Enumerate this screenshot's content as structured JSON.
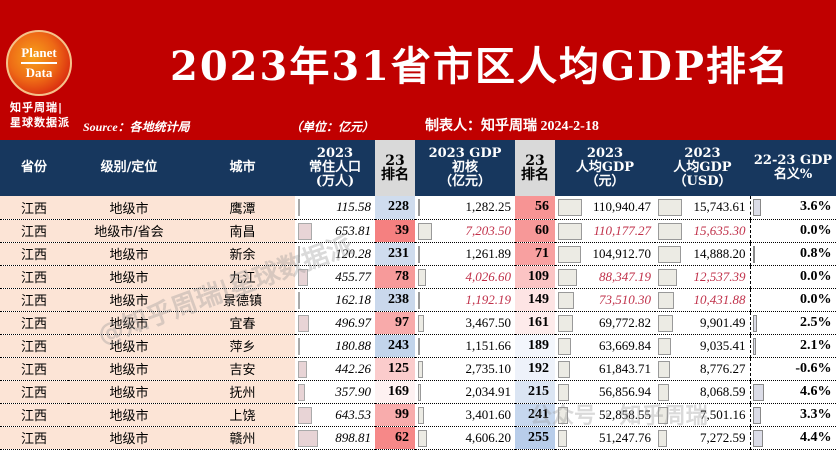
{
  "header": {
    "logo_line1": "Planet",
    "logo_line2": "Data",
    "brand_line1": "知乎周瑞|",
    "brand_line2": "星球数据派",
    "title": "2023年31省市区人均GDP排名",
    "source": "Source：各地统计局",
    "unit": "（单位：亿元）",
    "maker": "制表人：知乎周瑞 2024-2-18",
    "banner_color": "#c00000"
  },
  "columns": [
    {
      "label": "省份"
    },
    {
      "label": "级别/定位"
    },
    {
      "label": "城市"
    },
    {
      "label": "2023\n常住人口\n(万人)"
    },
    {
      "label": "23\n排名"
    },
    {
      "label": "2023 GDP\n初核\n（亿元）"
    },
    {
      "label": "23\n排名"
    },
    {
      "label": "2023\n人均GDP\n（元）"
    },
    {
      "label": "2023\n人均GDP\n（USD）"
    },
    {
      "label": "22-23 GDP\n名义%"
    }
  ],
  "rows": [
    {
      "province": "江西",
      "level": "地级市",
      "city": "鹰潭",
      "population": "115.58",
      "pop_rank": "228",
      "gdp": "1,282.25",
      "gdp_rank": "56",
      "gdp_pc_cny": "110,940.47",
      "gdp_pc_usd": "15,743.61",
      "growth": "3.6%",
      "italic_red": false,
      "pop_rank_color": "#cfdcee",
      "gdp_rank_color": "#f79494",
      "pop_bar": 2,
      "gdp_bar": 2,
      "pc_bar": 24,
      "usd_bar": 24,
      "g_bar": 8
    },
    {
      "province": "江西",
      "level": "地级市/省会",
      "city": "南昌",
      "population": "653.81",
      "pop_rank": "39",
      "gdp": "7,203.50",
      "gdp_rank": "60",
      "gdp_pc_cny": "110,177.27",
      "gdp_pc_usd": "15,635.30",
      "growth": "0.0%",
      "italic_red": true,
      "pop_rank_color": "#f58080",
      "gdp_rank_color": "#f79898",
      "pop_bar": 14,
      "gdp_bar": 14,
      "pc_bar": 24,
      "usd_bar": 24,
      "g_bar": 0
    },
    {
      "province": "江西",
      "level": "地级市",
      "city": "新余",
      "population": "120.28",
      "pop_rank": "231",
      "gdp": "1,261.89",
      "gdp_rank": "71",
      "gdp_pc_cny": "104,912.70",
      "gdp_pc_usd": "14,888.20",
      "growth": "0.8%",
      "italic_red": false,
      "pop_rank_color": "#cfdcee",
      "gdp_rank_color": "#f8a0a0",
      "pop_bar": 2,
      "gdp_bar": 2,
      "pc_bar": 23,
      "usd_bar": 23,
      "g_bar": 2
    },
    {
      "province": "江西",
      "level": "地级市",
      "city": "九江",
      "population": "455.77",
      "pop_rank": "78",
      "gdp": "4,026.60",
      "gdp_rank": "109",
      "gdp_pc_cny": "88,347.19",
      "gdp_pc_usd": "12,537.39",
      "growth": "0.0%",
      "italic_red": true,
      "pop_rank_color": "#f79a9a",
      "gdp_rank_color": "#fbc4c4",
      "pop_bar": 10,
      "gdp_bar": 8,
      "pc_bar": 19,
      "usd_bar": 19,
      "g_bar": 0
    },
    {
      "province": "江西",
      "level": "地级市",
      "city": "景德镇",
      "population": "162.18",
      "pop_rank": "238",
      "gdp": "1,192.19",
      "gdp_rank": "149",
      "gdp_pc_cny": "73,510.30",
      "gdp_pc_usd": "10,431.88",
      "growth": "0.0%",
      "italic_red": true,
      "pop_rank_color": "#cad8ec",
      "gdp_rank_color": "#fde4e4",
      "pop_bar": 2,
      "gdp_bar": 1,
      "pc_bar": 16,
      "usd_bar": 16,
      "g_bar": 0
    },
    {
      "province": "江西",
      "level": "地级市",
      "city": "宜春",
      "population": "496.97",
      "pop_rank": "97",
      "gdp": "3,467.50",
      "gdp_rank": "161",
      "gdp_pc_cny": "69,772.82",
      "gdp_pc_usd": "9,901.49",
      "growth": "2.5%",
      "italic_red": false,
      "pop_rank_color": "#f8aaaa",
      "gdp_rank_color": "#fdebeb",
      "pop_bar": 11,
      "gdp_bar": 6,
      "pc_bar": 15,
      "usd_bar": 15,
      "g_bar": 4
    },
    {
      "province": "江西",
      "level": "地级市",
      "city": "萍乡",
      "population": "180.88",
      "pop_rank": "243",
      "gdp": "1,151.66",
      "gdp_rank": "189",
      "gdp_pc_cny": "63,669.84",
      "gdp_pc_usd": "9,035.41",
      "growth": "2.1%",
      "italic_red": false,
      "pop_rank_color": "#c2d4eb",
      "gdp_rank_color": "#f3f6fc",
      "pop_bar": 2,
      "gdp_bar": 1,
      "pc_bar": 13,
      "usd_bar": 13,
      "g_bar": 3
    },
    {
      "province": "江西",
      "level": "地级市",
      "city": "吉安",
      "population": "442.26",
      "pop_rank": "125",
      "gdp": "2,735.10",
      "gdp_rank": "192",
      "gdp_pc_cny": "61,843.71",
      "gdp_pc_usd": "8,776.27",
      "growth": "-0.6%",
      "italic_red": false,
      "pop_rank_color": "#fbcccc",
      "gdp_rank_color": "#eef2fa",
      "pop_bar": 9,
      "gdp_bar": 5,
      "pc_bar": 12,
      "usd_bar": 12,
      "g_bar": 0
    },
    {
      "province": "江西",
      "level": "地级市",
      "city": "抚州",
      "population": "357.90",
      "pop_rank": "169",
      "gdp": "2,034.91",
      "gdp_rank": "215",
      "gdp_pc_cny": "56,856.94",
      "gdp_pc_usd": "8,068.59",
      "growth": "4.6%",
      "italic_red": false,
      "pop_rank_color": "#fdf1f1",
      "gdp_rank_color": "#dbe5f3",
      "pop_bar": 7,
      "gdp_bar": 3,
      "pc_bar": 11,
      "usd_bar": 11,
      "g_bar": 11
    },
    {
      "province": "江西",
      "level": "地级市",
      "city": "上饶",
      "population": "643.53",
      "pop_rank": "99",
      "gdp": "3,401.60",
      "gdp_rank": "241",
      "gdp_pc_cny": "52,858.55",
      "gdp_pc_usd": "7,501.16",
      "growth": "3.3%",
      "italic_red": false,
      "pop_rank_color": "#f8acac",
      "gdp_rank_color": "#c6d7ee",
      "pop_bar": 14,
      "gdp_bar": 6,
      "pc_bar": 10,
      "usd_bar": 10,
      "g_bar": 8
    },
    {
      "province": "江西",
      "level": "地级市",
      "city": "赣州",
      "population": "898.81",
      "pop_rank": "62",
      "gdp": "4,606.20",
      "gdp_rank": "255",
      "gdp_pc_cny": "51,247.76",
      "gdp_pc_usd": "7,272.59",
      "growth": "4.4%",
      "italic_red": false,
      "pop_rank_color": "#f68888",
      "gdp_rank_color": "#b8cdea",
      "pop_bar": 20,
      "gdp_bar": 9,
      "pc_bar": 9,
      "usd_bar": 9,
      "g_bar": 10
    }
  ],
  "watermarks": [
    "@知乎周瑞|星球数据派",
    "公众号 · 知乎周瑞"
  ]
}
